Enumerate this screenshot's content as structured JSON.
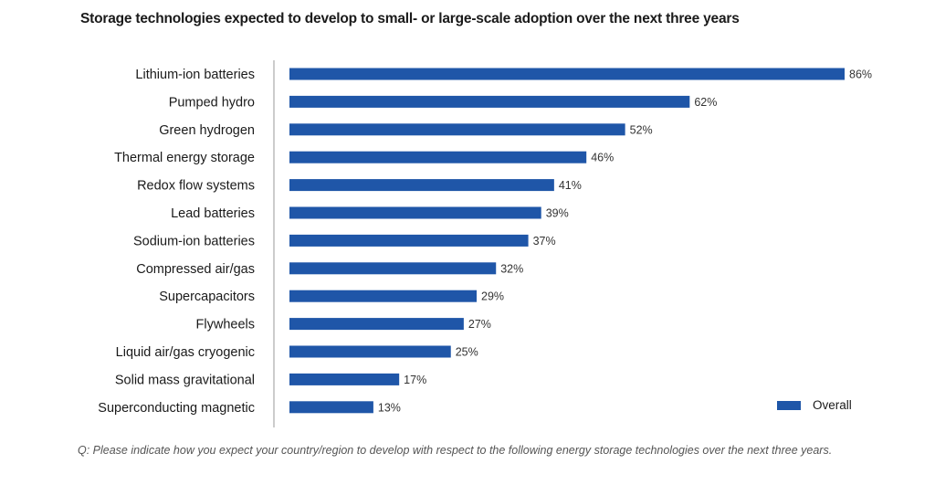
{
  "title": "Storage technologies expected to develop to small- or large-scale adoption over the next three years",
  "footnote": "Q: Please indicate how you expect your country/region to develop with respect to the following energy storage technologies over the next three years.",
  "colors": {
    "bar": "#1f56a8",
    "axis": "#999999",
    "text": "#1a1a1a"
  },
  "chart_data": {
    "type": "bar",
    "orientation": "horizontal",
    "categories": [
      "Lithium-ion batteries",
      "Pumped hydro",
      "Green hydrogen",
      "Thermal energy storage",
      "Redox flow systems",
      "Lead batteries",
      "Sodium-ion batteries",
      "Compressed air/gas",
      "Supercapacitors",
      "Flywheels",
      "Liquid air/gas cryogenic",
      "Solid mass gravitational",
      "Superconducting  magnetic"
    ],
    "series": [
      {
        "name": "Overall",
        "values": [
          86,
          62,
          52,
          46,
          41,
          39,
          37,
          32,
          29,
          27,
          25,
          17,
          13
        ]
      }
    ],
    "value_labels": [
      "86%",
      "62%",
      "52%",
      "46%",
      "41%",
      "39%",
      "37%",
      "32%",
      "29%",
      "27%",
      "25%",
      "17%",
      "13%"
    ],
    "xlim": [
      0,
      86
    ],
    "grid": false,
    "legend_position": "bottom-right"
  }
}
